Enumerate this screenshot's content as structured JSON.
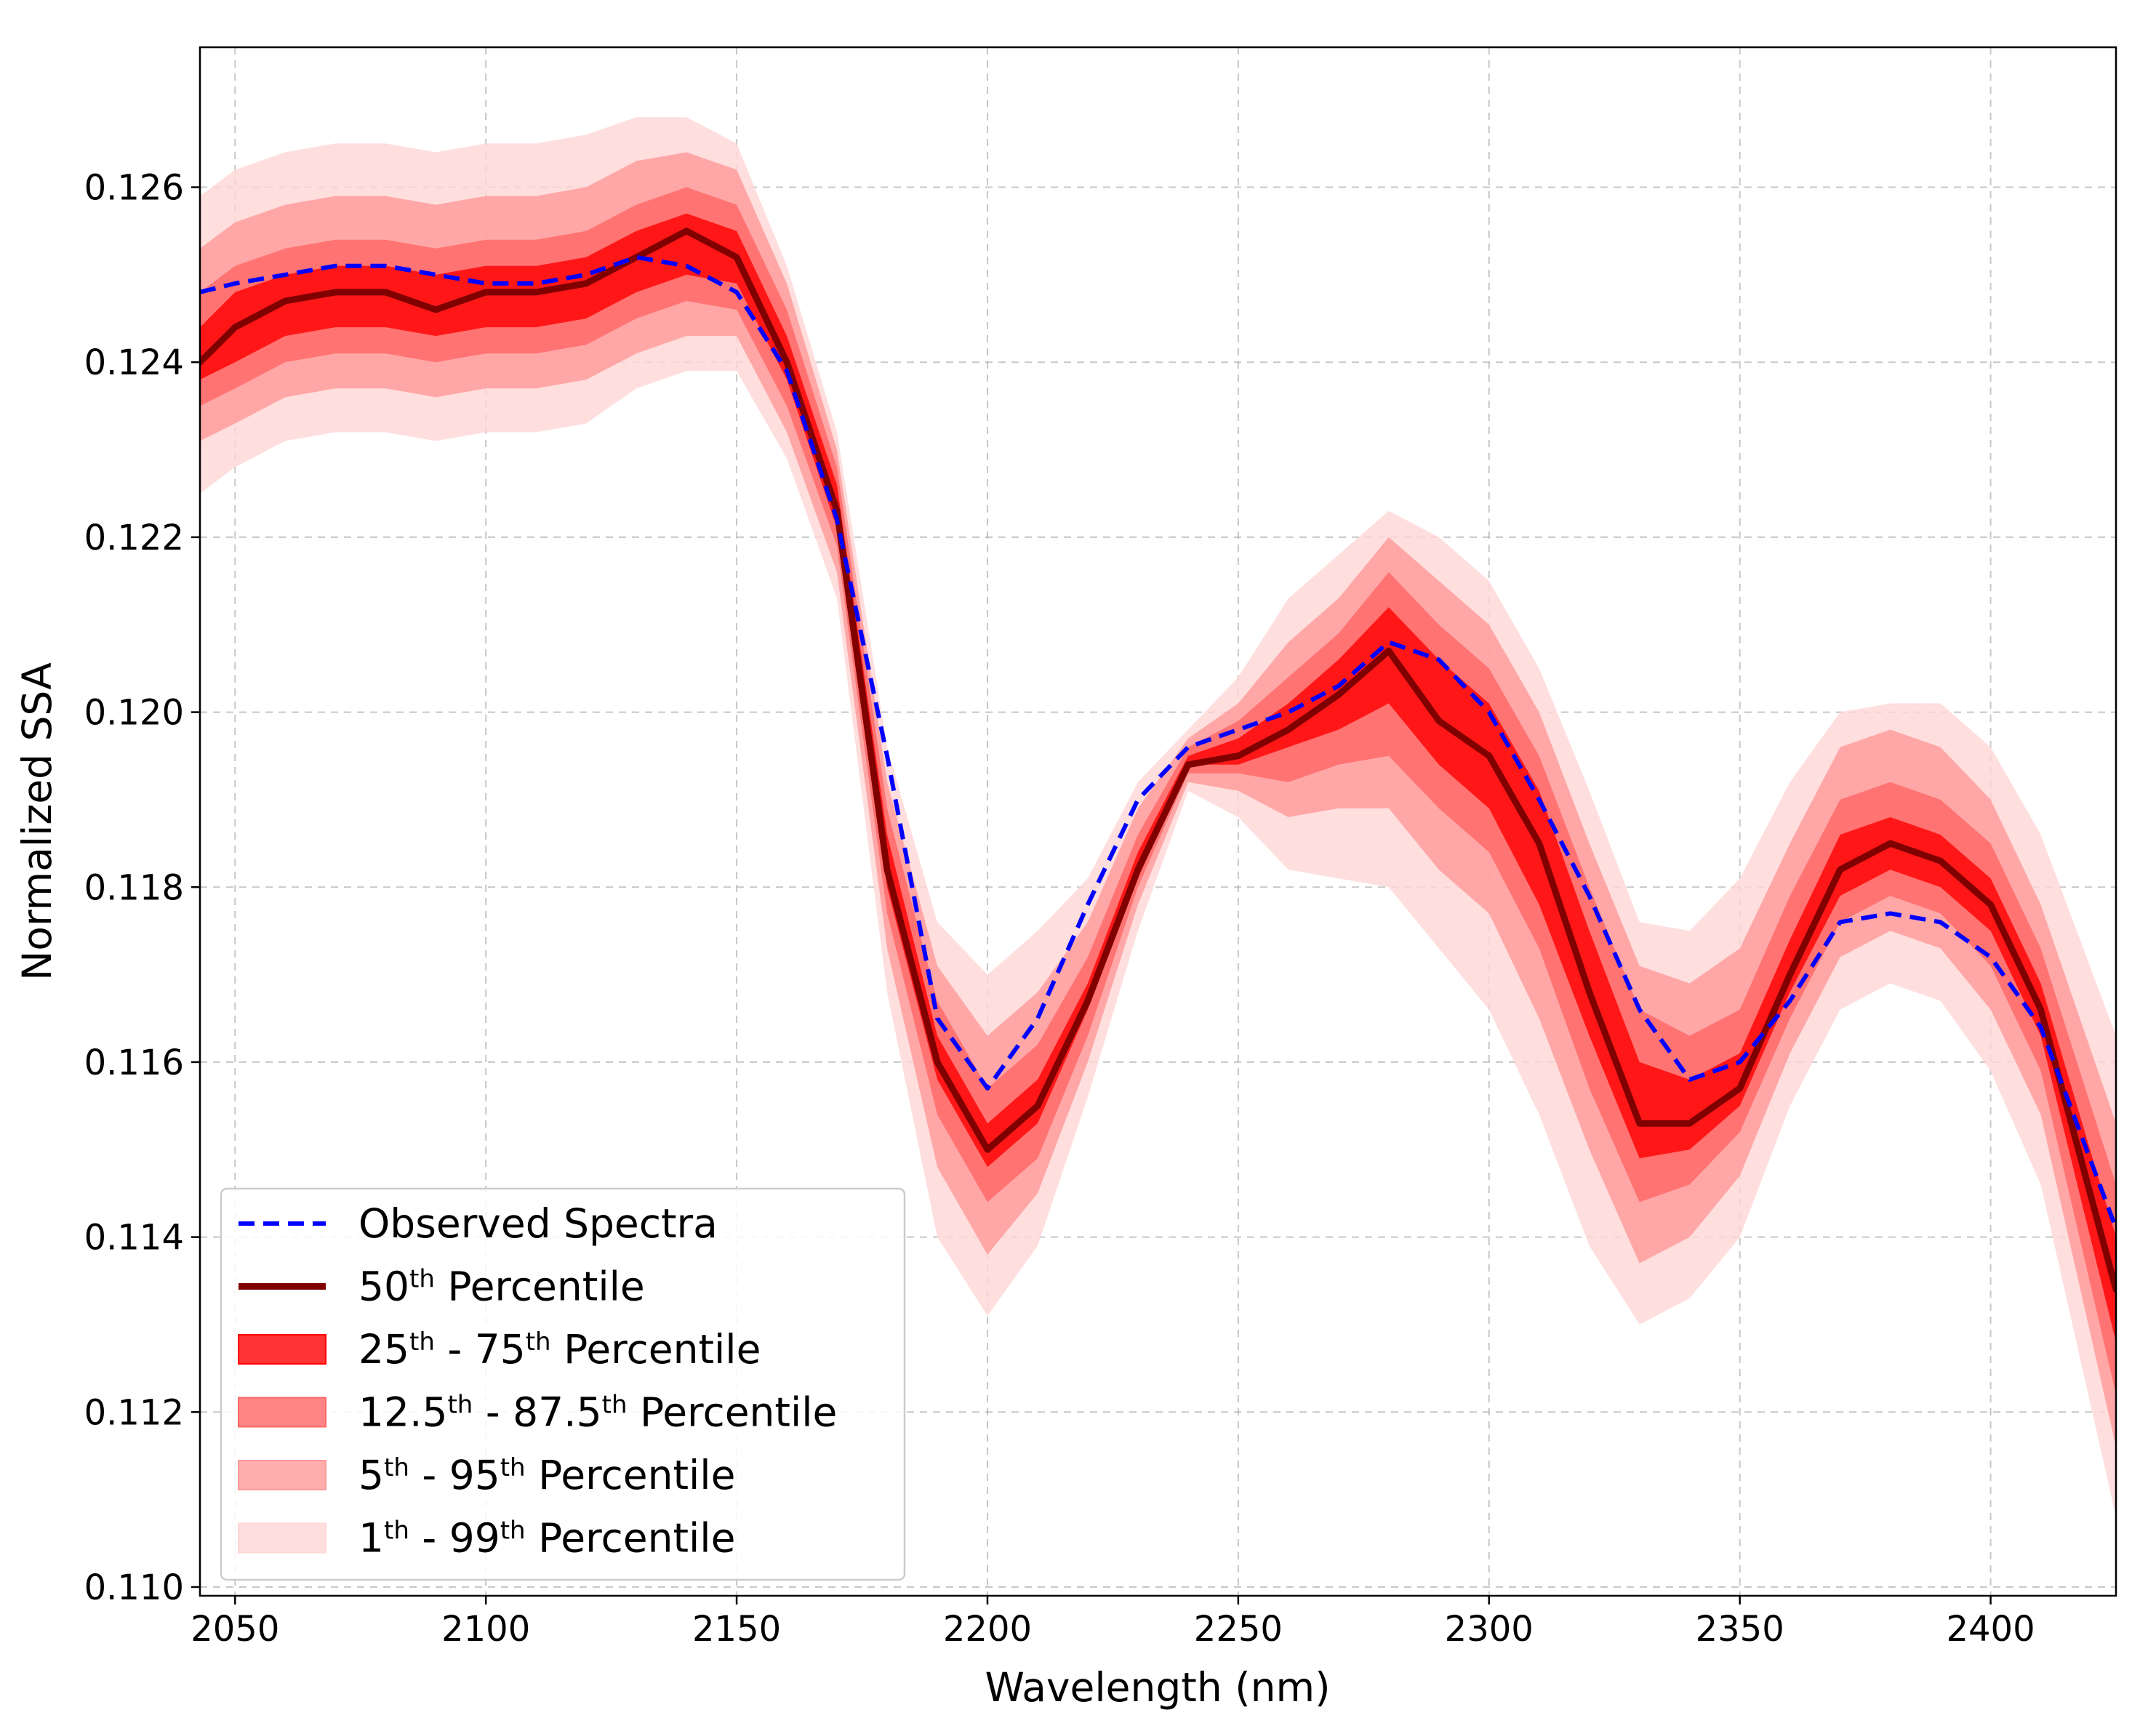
{
  "chart_data": {
    "type": "line",
    "xlabel": "Wavelength (nm)",
    "ylabel": "Normalized SSA",
    "xlim": [
      2043,
      2425
    ],
    "ylim": [
      0.1099,
      0.1276
    ],
    "xticks": [
      2050,
      2100,
      2150,
      2200,
      2250,
      2300,
      2350,
      2400
    ],
    "yticks": [
      0.11,
      0.112,
      0.114,
      0.116,
      0.118,
      0.12,
      0.122,
      0.124,
      0.126
    ],
    "xtick_labels": [
      "2050",
      "2100",
      "2150",
      "2200",
      "2250",
      "2300",
      "2350",
      "2400"
    ],
    "ytick_labels": [
      "0.110",
      "0.112",
      "0.114",
      "0.116",
      "0.118",
      "0.120",
      "0.122",
      "0.124",
      "0.126"
    ],
    "grid": true,
    "grid_style": "dashed",
    "legend_position": "lower-left",
    "colors": {
      "observed": "#0000ff",
      "median": "#800000",
      "band_25_75": "#ff0000",
      "band_12_88": "#ff6666",
      "band_5_95": "#ff9999",
      "band_1_99": "#ffd6d6"
    },
    "legend": [
      {
        "key": "observed",
        "kind": "dashed-line",
        "main": "Observed Spectra",
        "parts": [
          [
            "Observed Spectra",
            false
          ]
        ]
      },
      {
        "key": "median",
        "kind": "line",
        "main": "50th Percentile",
        "parts": [
          [
            "50",
            false
          ],
          [
            "th",
            true
          ],
          [
            " Percentile",
            false
          ]
        ]
      },
      {
        "key": "band_25_75",
        "kind": "patch",
        "main": "25th - 75th Percentile",
        "parts": [
          [
            "25",
            false
          ],
          [
            "th",
            true
          ],
          [
            " - 75",
            false
          ],
          [
            "th",
            true
          ],
          [
            " Percentile",
            false
          ]
        ]
      },
      {
        "key": "band_12_88",
        "kind": "patch",
        "main": "12.5th - 87.5th Percentile",
        "parts": [
          [
            "12.5",
            false
          ],
          [
            "th",
            true
          ],
          [
            " - 87.5",
            false
          ],
          [
            "th",
            true
          ],
          [
            "  Percentile",
            false
          ]
        ]
      },
      {
        "key": "band_5_95",
        "kind": "patch",
        "main": "5th - 95th Percentile",
        "parts": [
          [
            "5",
            false
          ],
          [
            "th",
            true
          ],
          [
            " - 95",
            false
          ],
          [
            "th",
            true
          ],
          [
            " Percentile",
            false
          ]
        ]
      },
      {
        "key": "band_1_99",
        "kind": "patch",
        "main": "1th - 99th Percentile",
        "parts": [
          [
            "1",
            false
          ],
          [
            "th",
            true
          ],
          [
            " - 99",
            false
          ],
          [
            "th",
            true
          ],
          [
            " Percentile",
            false
          ]
        ]
      }
    ],
    "x": [
      2043,
      2050,
      2060,
      2070,
      2080,
      2090,
      2100,
      2110,
      2120,
      2130,
      2140,
      2150,
      2160,
      2170,
      2180,
      2190,
      2200,
      2210,
      2220,
      2230,
      2240,
      2250,
      2260,
      2270,
      2280,
      2290,
      2300,
      2310,
      2320,
      2330,
      2340,
      2350,
      2360,
      2370,
      2380,
      2390,
      2400,
      2410,
      2425
    ],
    "series": [
      {
        "name": "Observed Spectra",
        "key": "observed",
        "values": [
          0.1248,
          0.1249,
          0.125,
          0.1251,
          0.1251,
          0.125,
          0.1249,
          0.1249,
          0.125,
          0.1252,
          0.1251,
          0.1248,
          0.1239,
          0.1222,
          0.1195,
          0.1165,
          0.1157,
          0.1165,
          0.1178,
          0.119,
          0.1196,
          0.1198,
          0.12,
          0.1203,
          0.1208,
          0.1206,
          0.12,
          0.119,
          0.1179,
          0.1166,
          0.1158,
          0.116,
          0.1167,
          0.1176,
          0.1177,
          0.1176,
          0.1172,
          0.1164,
          0.1141
        ]
      },
      {
        "name": "50th Percentile",
        "key": "median",
        "values": [
          0.124,
          0.1244,
          0.1247,
          0.1248,
          0.1248,
          0.1246,
          0.1248,
          0.1248,
          0.1249,
          0.1252,
          0.1255,
          0.1252,
          0.124,
          0.1223,
          0.1182,
          0.116,
          0.115,
          0.1155,
          0.1167,
          0.1182,
          0.1194,
          0.1195,
          0.1198,
          0.1202,
          0.1207,
          0.1199,
          0.1195,
          0.1185,
          0.1168,
          0.1153,
          0.1153,
          0.1157,
          0.117,
          0.1182,
          0.1185,
          0.1183,
          0.1178,
          0.1166,
          0.1134
        ]
      },
      {
        "name": "25th - 75th Percentile",
        "key": "band_25_75",
        "lower": [
          0.1238,
          0.124,
          0.1243,
          0.1244,
          0.1244,
          0.1243,
          0.1244,
          0.1244,
          0.1245,
          0.1248,
          0.125,
          0.1249,
          0.1238,
          0.1221,
          0.118,
          0.1158,
          0.1148,
          0.1153,
          0.1166,
          0.1181,
          0.1194,
          0.1194,
          0.1196,
          0.1198,
          0.1201,
          0.1194,
          0.1189,
          0.1178,
          0.1163,
          0.1149,
          0.115,
          0.1155,
          0.1168,
          0.1179,
          0.1182,
          0.118,
          0.1175,
          0.1163,
          0.1128
        ],
        "upper": [
          0.1244,
          0.1248,
          0.125,
          0.1251,
          0.1251,
          0.125,
          0.1251,
          0.1251,
          0.1252,
          0.1255,
          0.1257,
          0.1255,
          0.1243,
          0.1226,
          0.1186,
          0.1163,
          0.1153,
          0.1158,
          0.1169,
          0.1184,
          0.1195,
          0.1197,
          0.1201,
          0.1206,
          0.1212,
          0.1206,
          0.1201,
          0.1191,
          0.1175,
          0.116,
          0.1158,
          0.1161,
          0.1174,
          0.1186,
          0.1188,
          0.1186,
          0.1181,
          0.1169,
          0.114
        ]
      },
      {
        "name": "12.5th - 87.5th Percentile",
        "key": "band_12_88",
        "lower": [
          0.1235,
          0.1237,
          0.124,
          0.1241,
          0.1241,
          0.124,
          0.1241,
          0.1241,
          0.1242,
          0.1245,
          0.1247,
          0.1246,
          0.1235,
          0.1219,
          0.1177,
          0.1154,
          0.1144,
          0.1149,
          0.1163,
          0.118,
          0.1193,
          0.1193,
          0.1192,
          0.1194,
          0.1195,
          0.1189,
          0.1184,
          0.1173,
          0.1157,
          0.1144,
          0.1146,
          0.1152,
          0.1165,
          0.1176,
          0.1179,
          0.1177,
          0.1171,
          0.1159,
          0.1122
        ],
        "upper": [
          0.1248,
          0.1251,
          0.1253,
          0.1254,
          0.1254,
          0.1253,
          0.1254,
          0.1254,
          0.1255,
          0.1258,
          0.126,
          0.1258,
          0.1246,
          0.1228,
          0.1189,
          0.1167,
          0.1157,
          0.1162,
          0.1172,
          0.1186,
          0.1196,
          0.1199,
          0.1204,
          0.1209,
          0.1216,
          0.121,
          0.1205,
          0.1195,
          0.118,
          0.1166,
          0.1163,
          0.1166,
          0.1179,
          0.119,
          0.1192,
          0.119,
          0.1185,
          0.1173,
          0.1146
        ]
      },
      {
        "name": "5th - 95th Percentile",
        "key": "band_5_95",
        "lower": [
          0.1231,
          0.1233,
          0.1236,
          0.1237,
          0.1237,
          0.1236,
          0.1237,
          0.1237,
          0.1238,
          0.1241,
          0.1243,
          0.1243,
          0.1232,
          0.1216,
          0.1173,
          0.1148,
          0.1138,
          0.1145,
          0.116,
          0.1178,
          0.1192,
          0.1191,
          0.1188,
          0.1189,
          0.1189,
          0.1182,
          0.1177,
          0.1165,
          0.115,
          0.1137,
          0.114,
          0.1147,
          0.1161,
          0.1172,
          0.1175,
          0.1173,
          0.1166,
          0.1154,
          0.1116
        ],
        "upper": [
          0.1253,
          0.1256,
          0.1258,
          0.1259,
          0.1259,
          0.1258,
          0.1259,
          0.1259,
          0.126,
          0.1263,
          0.1264,
          0.1262,
          0.1249,
          0.123,
          0.1192,
          0.1171,
          0.1163,
          0.1168,
          0.1176,
          0.1189,
          0.1197,
          0.1201,
          0.1208,
          0.1213,
          0.122,
          0.1215,
          0.121,
          0.12,
          0.1185,
          0.1171,
          0.1169,
          0.1173,
          0.1185,
          0.1196,
          0.1198,
          0.1196,
          0.119,
          0.1178,
          0.1153
        ]
      },
      {
        "name": "1th - 99th Percentile",
        "key": "band_1_99",
        "lower": [
          0.1225,
          0.1228,
          0.1231,
          0.1232,
          0.1232,
          0.1231,
          0.1232,
          0.1232,
          0.1233,
          0.1237,
          0.1239,
          0.1239,
          0.1229,
          0.1213,
          0.1168,
          0.114,
          0.1131,
          0.1139,
          0.1156,
          0.1175,
          0.1191,
          0.1188,
          0.1182,
          0.1181,
          0.118,
          0.1173,
          0.1166,
          0.1154,
          0.1139,
          0.113,
          0.1133,
          0.114,
          0.1155,
          0.1166,
          0.1169,
          0.1167,
          0.1159,
          0.1146,
          0.1108
        ],
        "upper": [
          0.1259,
          0.1262,
          0.1264,
          0.1265,
          0.1265,
          0.1264,
          0.1265,
          0.1265,
          0.1266,
          0.1268,
          0.1268,
          0.1265,
          0.1251,
          0.1232,
          0.1196,
          0.1176,
          0.117,
          0.1175,
          0.1181,
          0.1192,
          0.1198,
          0.1204,
          0.1213,
          0.1218,
          0.1223,
          0.122,
          0.1215,
          0.1205,
          0.1191,
          0.1176,
          0.1175,
          0.1181,
          0.1192,
          0.12,
          0.1201,
          0.1201,
          0.1196,
          0.1186,
          0.1163
        ]
      }
    ]
  }
}
